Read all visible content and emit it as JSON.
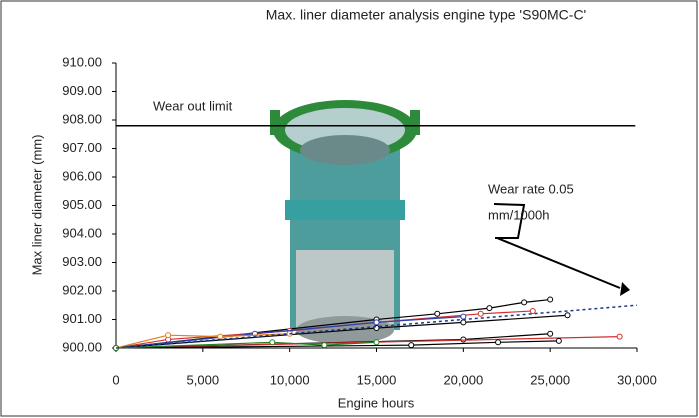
{
  "chart_data": {
    "type": "line",
    "title": "Max. liner diameter analysis engine type 'S90MC-C'",
    "x_label": "Engine hours",
    "y_label": "Max liner diameter (mm)",
    "xlim": [
      0,
      30000
    ],
    "ylim": [
      900,
      910
    ],
    "xticks": [
      0,
      {
        "value": 5000,
        "label": "5,000"
      },
      {
        "value": 10000,
        "label": "10,000"
      },
      {
        "value": 15000,
        "label": "15,000"
      },
      {
        "value": 20000,
        "label": "20,000"
      },
      {
        "value": 25000,
        "label": "25,000"
      },
      {
        "value": 30000,
        "label": "30,000"
      }
    ],
    "yticks": [
      {
        "value": 900,
        "label": "900.00"
      },
      {
        "value": 901,
        "label": "901.00"
      },
      {
        "value": 902,
        "label": "902.00"
      },
      {
        "value": 903,
        "label": "903.00"
      },
      {
        "value": 904,
        "label": "904.00"
      },
      {
        "value": 905,
        "label": "905.00"
      },
      {
        "value": 906,
        "label": "906.00"
      },
      {
        "value": 907,
        "label": "907.00"
      },
      {
        "value": 908,
        "label": "908.00"
      },
      {
        "value": 909,
        "label": "909.00"
      },
      {
        "value": 910,
        "label": "910.00"
      }
    ],
    "series": [
      {
        "color": "#000000",
        "x": [
          0,
          15000,
          18500,
          21500,
          23500,
          25000
        ],
        "values": [
          900,
          901.0,
          901.2,
          901.4,
          901.6,
          901.7
        ]
      },
      {
        "color": "#d03030",
        "x": [
          0,
          3000,
          10000,
          15000,
          21000,
          24000
        ],
        "values": [
          900,
          900.3,
          900.6,
          900.9,
          901.2,
          901.3
        ]
      },
      {
        "color": "#3040b0",
        "x": [
          0,
          8000,
          15000,
          20000
        ],
        "values": [
          900,
          900.5,
          900.9,
          901.1
        ]
      },
      {
        "color": "#000000",
        "x": [
          0,
          15000,
          20000,
          26000
        ],
        "values": [
          900,
          900.7,
          900.9,
          901.15
        ]
      },
      {
        "color": "#000000",
        "x": [
          0,
          20000,
          25000
        ],
        "values": [
          900,
          900.3,
          900.5
        ]
      },
      {
        "color": "#d03030",
        "x": [
          0,
          29000
        ],
        "values": [
          900,
          900.4
        ]
      },
      {
        "color": "#000000",
        "x": [
          0,
          17000,
          22000,
          25500
        ],
        "values": [
          900,
          900.1,
          900.2,
          900.25
        ]
      },
      {
        "color": "#e08020",
        "x": [
          0,
          3000,
          6000,
          10000
        ],
        "values": [
          900,
          900.45,
          900.4,
          900.5
        ]
      },
      {
        "color": "#208020",
        "x": [
          0,
          9000,
          12000,
          15000
        ],
        "values": [
          900,
          900.2,
          900.1,
          900.2
        ]
      }
    ],
    "wear_out_limit": {
      "label": "Wear out limit",
      "x": [
        0,
        29900
      ],
      "values": [
        907.8,
        907.8
      ]
    },
    "wear_rate": {
      "label": [
        "Wear rate 0.05",
        "mm/1000h"
      ],
      "x": [
        0,
        30000
      ],
      "values": [
        900,
        901.5
      ]
    }
  }
}
